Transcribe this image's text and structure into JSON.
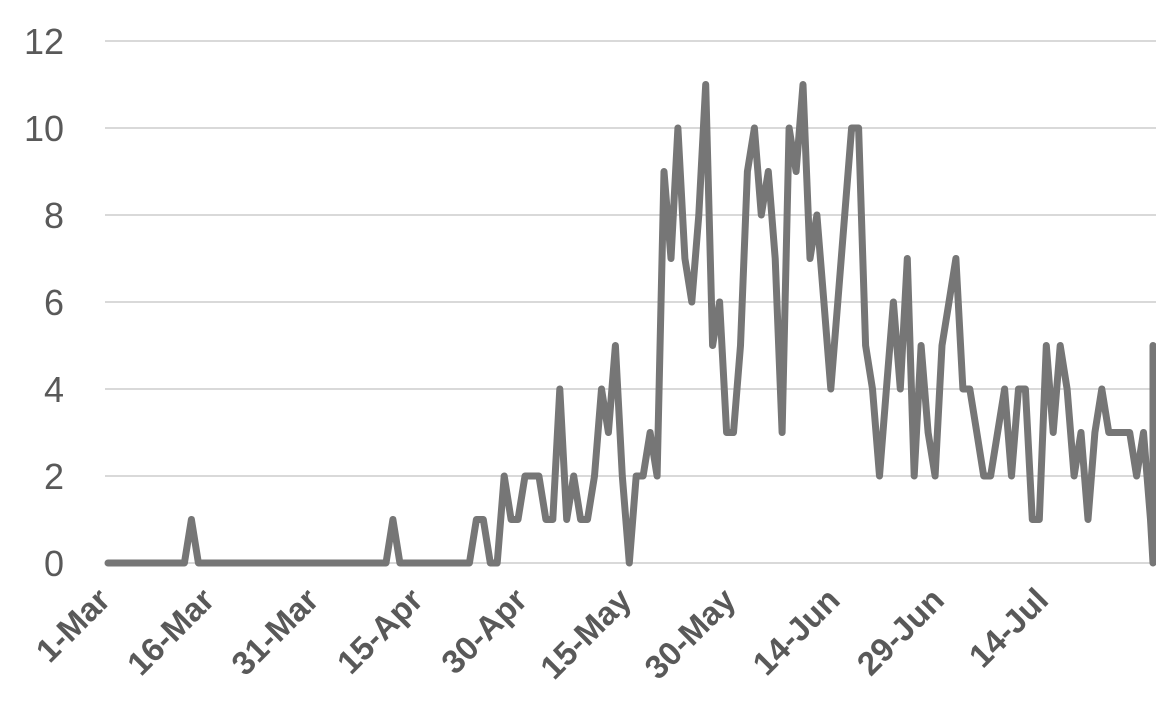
{
  "chart_data": {
    "type": "line",
    "title": "",
    "xlabel": "",
    "ylabel": "",
    "x_tick_labels": [
      "1-Mar",
      "16-Mar",
      "31-Mar",
      "15-Apr",
      "30-Apr",
      "15-May",
      "30-May",
      "14-Jun",
      "29-Jun",
      "14-Jul"
    ],
    "y_tick_labels": [
      "0",
      "2",
      "4",
      "6",
      "8",
      "10",
      "12"
    ],
    "ylim": [
      0,
      12
    ],
    "x_start": "1-Mar",
    "x_end": "19-Jul",
    "grid": true,
    "legend": "none",
    "series": [
      {
        "color": "#767676",
        "values": [
          0,
          0,
          0,
          0,
          0,
          0,
          0,
          0,
          0,
          0,
          0,
          0,
          1,
          0,
          0,
          0,
          0,
          0,
          0,
          0,
          0,
          0,
          0,
          0,
          0,
          0,
          0,
          0,
          0,
          0,
          0,
          0,
          0,
          0,
          0,
          0,
          0,
          0,
          0,
          0,
          0,
          1,
          0,
          0,
          0,
          0,
          0,
          0,
          0,
          0,
          0,
          0,
          0,
          1,
          1,
          0,
          0,
          2,
          1,
          1,
          2,
          2,
          2,
          1,
          1,
          4,
          1,
          2,
          1,
          1,
          2,
          4,
          3,
          5,
          2,
          0,
          2,
          2,
          3,
          2,
          9,
          7,
          10,
          7,
          6,
          8,
          11,
          5,
          6,
          3,
          3,
          5,
          9,
          10,
          8,
          9,
          7,
          3,
          10,
          9,
          11,
          7,
          8,
          6,
          4,
          6,
          8,
          10,
          10,
          5,
          4,
          2,
          4,
          6,
          4,
          7,
          2,
          5,
          3,
          2,
          5,
          6,
          7,
          4,
          4,
          3,
          2,
          2,
          3,
          4,
          2,
          4,
          4,
          1,
          1,
          5,
          3,
          5,
          4,
          2,
          3,
          1,
          3,
          4,
          3,
          3,
          3,
          3,
          2,
          3,
          1,
          0,
          4,
          5
        ]
      }
    ]
  }
}
